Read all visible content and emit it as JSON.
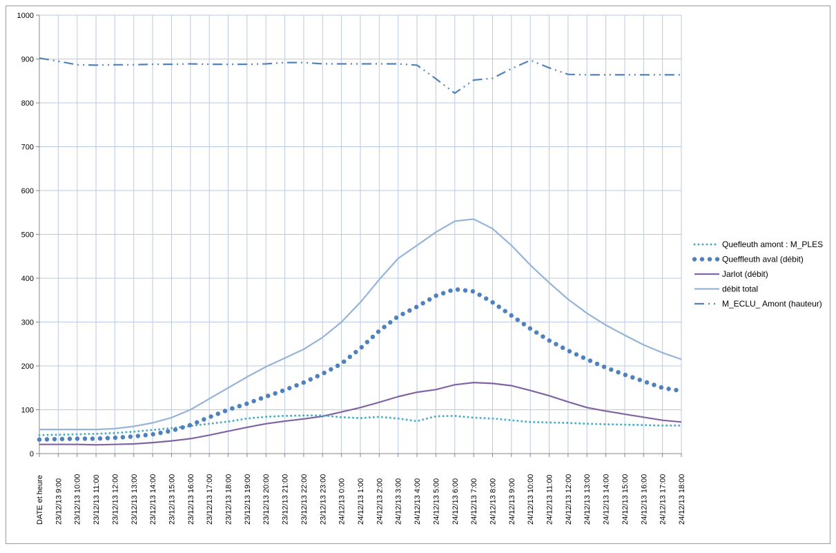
{
  "chart_data": {
    "type": "line",
    "title": "",
    "xlabel": "",
    "ylabel": "",
    "ylim": [
      0,
      1000
    ],
    "yticks": [
      0,
      100,
      200,
      300,
      400,
      500,
      600,
      700,
      800,
      900,
      1000
    ],
    "grid": true,
    "legend_position": "right",
    "categories": [
      "DATE et heure",
      "23/12/13 9:00",
      "23/12/13 10:00",
      "23/12/13 11:00",
      "23/12/13 12:00",
      "23/12/13 13:00",
      "23/12/13 14:00",
      "23/12/13 15:00",
      "23/12/13 16:00",
      "23/12/13 17:00",
      "23/12/13 18:00",
      "23/12/13 19:00",
      "23/12/13 20:00",
      "23/12/13 21:00",
      "23/12/13 22:00",
      "23/12/13 23:00",
      "24/12/13 0:00",
      "24/12/13 1:00",
      "24/12/13 2:00",
      "24/12/13 3:00",
      "24/12/13 4:00",
      "24/12/13 5:00",
      "24/12/13 6:00",
      "24/12/13 7:00",
      "24/12/13 8:00",
      "24/12/13 9:00",
      "24/12/13 10:00",
      "24/12/13 11:00",
      "24/12/13 12:00",
      "24/12/13 13:00",
      "24/12/13 14:00",
      "24/12/13 15:00",
      "24/12/13 16:00",
      "24/12/13 17:00",
      "24/12/13 18:00"
    ],
    "series": [
      {
        "name": "Quefleuth amont : M_PLES",
        "color": "#4bacc6",
        "style": "dotted",
        "values": [
          42,
          43,
          44,
          45,
          47,
          50,
          54,
          58,
          63,
          68,
          73,
          80,
          84,
          86,
          87,
          87,
          83,
          81,
          84,
          80,
          74,
          85,
          86,
          82,
          80,
          76,
          72,
          71,
          70,
          68,
          67,
          66,
          65,
          64,
          64
        ]
      },
      {
        "name": "Queffleuth aval (débit)",
        "color": "#4f81bd",
        "style": "large-dots",
        "values": [
          32,
          33,
          34,
          34,
          36,
          39,
          44,
          52,
          65,
          83,
          100,
          114,
          130,
          145,
          162,
          182,
          205,
          240,
          280,
          313,
          335,
          360,
          375,
          370,
          345,
          315,
          285,
          258,
          235,
          215,
          196,
          180,
          165,
          150,
          143
        ]
      },
      {
        "name": "Jarlot (débit)",
        "color": "#8064a2",
        "style": "solid",
        "values": [
          21,
          21,
          21,
          20,
          21,
          22,
          25,
          29,
          34,
          42,
          51,
          60,
          68,
          74,
          79,
          85,
          95,
          105,
          117,
          130,
          140,
          146,
          157,
          162,
          160,
          155,
          144,
          132,
          118,
          105,
          97,
          90,
          83,
          76,
          72
        ]
      },
      {
        "name": "débit total",
        "color": "#95b3d7",
        "style": "solid",
        "values": [
          55,
          55,
          55,
          55,
          57,
          62,
          70,
          82,
          100,
          125,
          150,
          175,
          198,
          218,
          238,
          265,
          300,
          345,
          397,
          445,
          475,
          505,
          530,
          535,
          513,
          475,
          430,
          390,
          352,
          320,
          293,
          270,
          248,
          230,
          215
        ]
      },
      {
        "name": "M_ECLU_ Amont (hauteur)",
        "color": "#4f81bd",
        "style": "dash-dot",
        "values": [
          902,
          895,
          887,
          886,
          887,
          887,
          888,
          888,
          889,
          888,
          888,
          888,
          889,
          892,
          892,
          889,
          889,
          889,
          889,
          889,
          886,
          855,
          822,
          852,
          856,
          878,
          897,
          880,
          865,
          864,
          864,
          864,
          864,
          864,
          864
        ]
      }
    ]
  }
}
